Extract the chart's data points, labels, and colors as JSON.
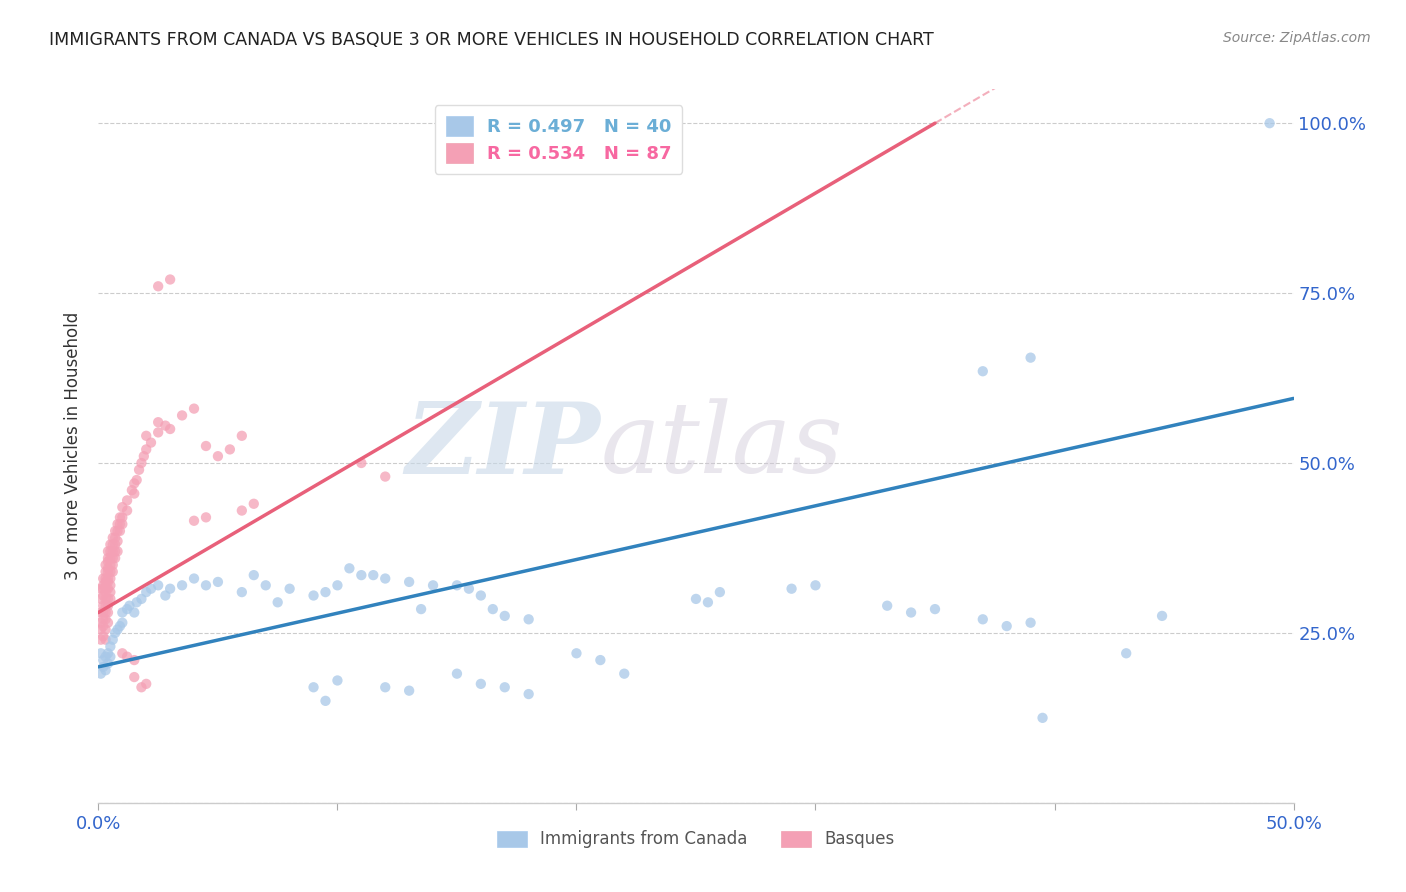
{
  "title": "IMMIGRANTS FROM CANADA VS BASQUE 3 OR MORE VEHICLES IN HOUSEHOLD CORRELATION CHART",
  "source": "Source: ZipAtlas.com",
  "ylabel": "3 or more Vehicles in Household",
  "xlim": [
    0.0,
    0.5
  ],
  "ylim": [
    0.0,
    1.05
  ],
  "yticks": [
    0.0,
    0.25,
    0.5,
    0.75,
    1.0
  ],
  "ytick_labels": [
    "",
    "25.0%",
    "50.0%",
    "75.0%",
    "100.0%"
  ],
  "xticks": [
    0.0,
    0.1,
    0.2,
    0.3,
    0.4,
    0.5
  ],
  "xtick_labels": [
    "0.0%",
    "",
    "",
    "",
    "",
    "50.0%"
  ],
  "watermark_zip": "ZIP",
  "watermark_atlas": "atlas",
  "legend_entries": [
    {
      "label": "R = 0.497   N = 40",
      "color": "#6baed6"
    },
    {
      "label": "R = 0.534   N = 87",
      "color": "#f768a1"
    }
  ],
  "canada_color": "#a8c8e8",
  "basque_color": "#f4a0b5",
  "canada_line_color": "#3182bd",
  "basque_line_color": "#e8607a",
  "canada_trendline": [
    [
      0.0,
      0.2
    ],
    [
      0.5,
      0.595
    ]
  ],
  "basque_trendline": [
    [
      0.0,
      0.28
    ],
    [
      0.35,
      1.0
    ]
  ],
  "canada_points": [
    [
      0.001,
      0.19
    ],
    [
      0.001,
      0.22
    ],
    [
      0.002,
      0.2
    ],
    [
      0.002,
      0.21
    ],
    [
      0.003,
      0.195
    ],
    [
      0.003,
      0.215
    ],
    [
      0.004,
      0.205
    ],
    [
      0.004,
      0.22
    ],
    [
      0.005,
      0.215
    ],
    [
      0.005,
      0.23
    ],
    [
      0.006,
      0.24
    ],
    [
      0.007,
      0.25
    ],
    [
      0.008,
      0.255
    ],
    [
      0.009,
      0.26
    ],
    [
      0.01,
      0.265
    ],
    [
      0.01,
      0.28
    ],
    [
      0.012,
      0.285
    ],
    [
      0.013,
      0.29
    ],
    [
      0.015,
      0.28
    ],
    [
      0.016,
      0.295
    ],
    [
      0.018,
      0.3
    ],
    [
      0.02,
      0.31
    ],
    [
      0.022,
      0.315
    ],
    [
      0.025,
      0.32
    ],
    [
      0.028,
      0.305
    ],
    [
      0.03,
      0.315
    ],
    [
      0.035,
      0.32
    ],
    [
      0.04,
      0.33
    ],
    [
      0.045,
      0.32
    ],
    [
      0.05,
      0.325
    ],
    [
      0.06,
      0.31
    ],
    [
      0.065,
      0.335
    ],
    [
      0.07,
      0.32
    ],
    [
      0.075,
      0.295
    ],
    [
      0.08,
      0.315
    ],
    [
      0.09,
      0.305
    ],
    [
      0.095,
      0.31
    ],
    [
      0.1,
      0.32
    ],
    [
      0.105,
      0.345
    ],
    [
      0.11,
      0.335
    ],
    [
      0.115,
      0.335
    ],
    [
      0.12,
      0.33
    ],
    [
      0.13,
      0.325
    ],
    [
      0.135,
      0.285
    ],
    [
      0.14,
      0.32
    ],
    [
      0.15,
      0.32
    ],
    [
      0.155,
      0.315
    ],
    [
      0.16,
      0.305
    ],
    [
      0.165,
      0.285
    ],
    [
      0.17,
      0.275
    ],
    [
      0.18,
      0.27
    ],
    [
      0.2,
      0.22
    ],
    [
      0.21,
      0.21
    ],
    [
      0.22,
      0.19
    ],
    [
      0.09,
      0.17
    ],
    [
      0.095,
      0.15
    ],
    [
      0.1,
      0.18
    ],
    [
      0.12,
      0.17
    ],
    [
      0.13,
      0.165
    ],
    [
      0.15,
      0.19
    ],
    [
      0.16,
      0.175
    ],
    [
      0.17,
      0.17
    ],
    [
      0.18,
      0.16
    ],
    [
      0.25,
      0.3
    ],
    [
      0.255,
      0.295
    ],
    [
      0.26,
      0.31
    ],
    [
      0.29,
      0.315
    ],
    [
      0.3,
      0.32
    ],
    [
      0.33,
      0.29
    ],
    [
      0.34,
      0.28
    ],
    [
      0.35,
      0.285
    ],
    [
      0.37,
      0.27
    ],
    [
      0.38,
      0.26
    ],
    [
      0.39,
      0.265
    ],
    [
      0.395,
      0.125
    ],
    [
      0.43,
      0.22
    ],
    [
      0.445,
      0.275
    ],
    [
      0.37,
      0.635
    ],
    [
      0.39,
      0.655
    ],
    [
      0.49,
      1.0
    ]
  ],
  "basque_points": [
    [
      0.001,
      0.3
    ],
    [
      0.001,
      0.315
    ],
    [
      0.001,
      0.28
    ],
    [
      0.001,
      0.265
    ],
    [
      0.001,
      0.255
    ],
    [
      0.001,
      0.24
    ],
    [
      0.002,
      0.33
    ],
    [
      0.002,
      0.32
    ],
    [
      0.002,
      0.315
    ],
    [
      0.002,
      0.305
    ],
    [
      0.002,
      0.29
    ],
    [
      0.002,
      0.28
    ],
    [
      0.002,
      0.27
    ],
    [
      0.002,
      0.26
    ],
    [
      0.002,
      0.245
    ],
    [
      0.003,
      0.35
    ],
    [
      0.003,
      0.34
    ],
    [
      0.003,
      0.33
    ],
    [
      0.003,
      0.325
    ],
    [
      0.003,
      0.315
    ],
    [
      0.003,
      0.31
    ],
    [
      0.003,
      0.3
    ],
    [
      0.003,
      0.29
    ],
    [
      0.003,
      0.28
    ],
    [
      0.003,
      0.27
    ],
    [
      0.003,
      0.255
    ],
    [
      0.003,
      0.24
    ],
    [
      0.004,
      0.37
    ],
    [
      0.004,
      0.36
    ],
    [
      0.004,
      0.355
    ],
    [
      0.004,
      0.345
    ],
    [
      0.004,
      0.34
    ],
    [
      0.004,
      0.33
    ],
    [
      0.004,
      0.325
    ],
    [
      0.004,
      0.315
    ],
    [
      0.004,
      0.3
    ],
    [
      0.004,
      0.29
    ],
    [
      0.004,
      0.28
    ],
    [
      0.004,
      0.265
    ],
    [
      0.005,
      0.38
    ],
    [
      0.005,
      0.37
    ],
    [
      0.005,
      0.36
    ],
    [
      0.005,
      0.35
    ],
    [
      0.005,
      0.34
    ],
    [
      0.005,
      0.33
    ],
    [
      0.005,
      0.32
    ],
    [
      0.005,
      0.31
    ],
    [
      0.005,
      0.3
    ],
    [
      0.006,
      0.39
    ],
    [
      0.006,
      0.38
    ],
    [
      0.006,
      0.37
    ],
    [
      0.006,
      0.36
    ],
    [
      0.006,
      0.35
    ],
    [
      0.006,
      0.34
    ],
    [
      0.007,
      0.4
    ],
    [
      0.007,
      0.39
    ],
    [
      0.007,
      0.38
    ],
    [
      0.007,
      0.37
    ],
    [
      0.007,
      0.36
    ],
    [
      0.008,
      0.41
    ],
    [
      0.008,
      0.4
    ],
    [
      0.008,
      0.385
    ],
    [
      0.008,
      0.37
    ],
    [
      0.009,
      0.42
    ],
    [
      0.009,
      0.41
    ],
    [
      0.009,
      0.4
    ],
    [
      0.01,
      0.435
    ],
    [
      0.01,
      0.42
    ],
    [
      0.01,
      0.41
    ],
    [
      0.012,
      0.445
    ],
    [
      0.012,
      0.43
    ],
    [
      0.014,
      0.46
    ],
    [
      0.015,
      0.47
    ],
    [
      0.015,
      0.455
    ],
    [
      0.016,
      0.475
    ],
    [
      0.017,
      0.49
    ],
    [
      0.018,
      0.5
    ],
    [
      0.019,
      0.51
    ],
    [
      0.02,
      0.52
    ],
    [
      0.022,
      0.53
    ],
    [
      0.025,
      0.545
    ],
    [
      0.028,
      0.555
    ],
    [
      0.03,
      0.55
    ],
    [
      0.035,
      0.57
    ],
    [
      0.04,
      0.58
    ],
    [
      0.045,
      0.525
    ],
    [
      0.05,
      0.51
    ],
    [
      0.055,
      0.52
    ],
    [
      0.06,
      0.54
    ],
    [
      0.015,
      0.185
    ],
    [
      0.018,
      0.17
    ],
    [
      0.02,
      0.175
    ],
    [
      0.01,
      0.22
    ],
    [
      0.012,
      0.215
    ],
    [
      0.015,
      0.21
    ],
    [
      0.04,
      0.415
    ],
    [
      0.045,
      0.42
    ],
    [
      0.06,
      0.43
    ],
    [
      0.065,
      0.44
    ],
    [
      0.11,
      0.5
    ],
    [
      0.12,
      0.48
    ],
    [
      0.025,
      0.76
    ],
    [
      0.03,
      0.77
    ],
    [
      0.02,
      0.54
    ],
    [
      0.025,
      0.56
    ]
  ],
  "background_color": "#ffffff",
  "grid_color": "#cccccc"
}
